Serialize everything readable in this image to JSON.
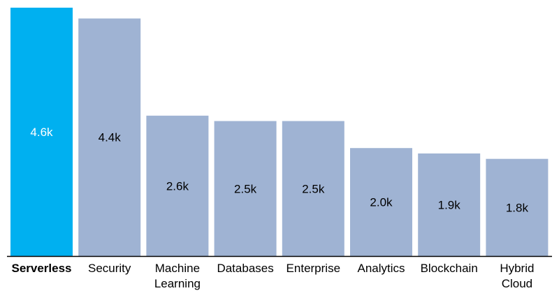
{
  "chart_data": {
    "type": "bar",
    "categories": [
      "Serverless",
      "Security",
      "Machine Learning",
      "Databases",
      "Enterprise",
      "Analytics",
      "Blockchain",
      "Hybrid Cloud"
    ],
    "category_lines": [
      [
        "Serverless"
      ],
      [
        "Security"
      ],
      [
        "Machine",
        "Learning"
      ],
      [
        "Databases"
      ],
      [
        "Enterprise"
      ],
      [
        "Analytics"
      ],
      [
        "Blockchain"
      ],
      [
        "Hybrid",
        "Cloud"
      ]
    ],
    "values": [
      4.6,
      4.4,
      2.6,
      2.5,
      2.5,
      2.0,
      1.9,
      1.8
    ],
    "value_labels": [
      "4.6k",
      "4.4k",
      "2.6k",
      "2.5k",
      "2.5k",
      "2.0k",
      "1.9k",
      "1.8k"
    ],
    "highlight_index": 0,
    "ylim": [
      0,
      4.6
    ],
    "grid": false,
    "legend": "none",
    "title": "",
    "xlabel": "",
    "ylabel": ""
  },
  "colors": {
    "highlight_bar": "#00b0f0",
    "bar": "#9fb3d3",
    "highlight_label": "#ffffff",
    "label": "#000000",
    "axis": "#000000"
  }
}
